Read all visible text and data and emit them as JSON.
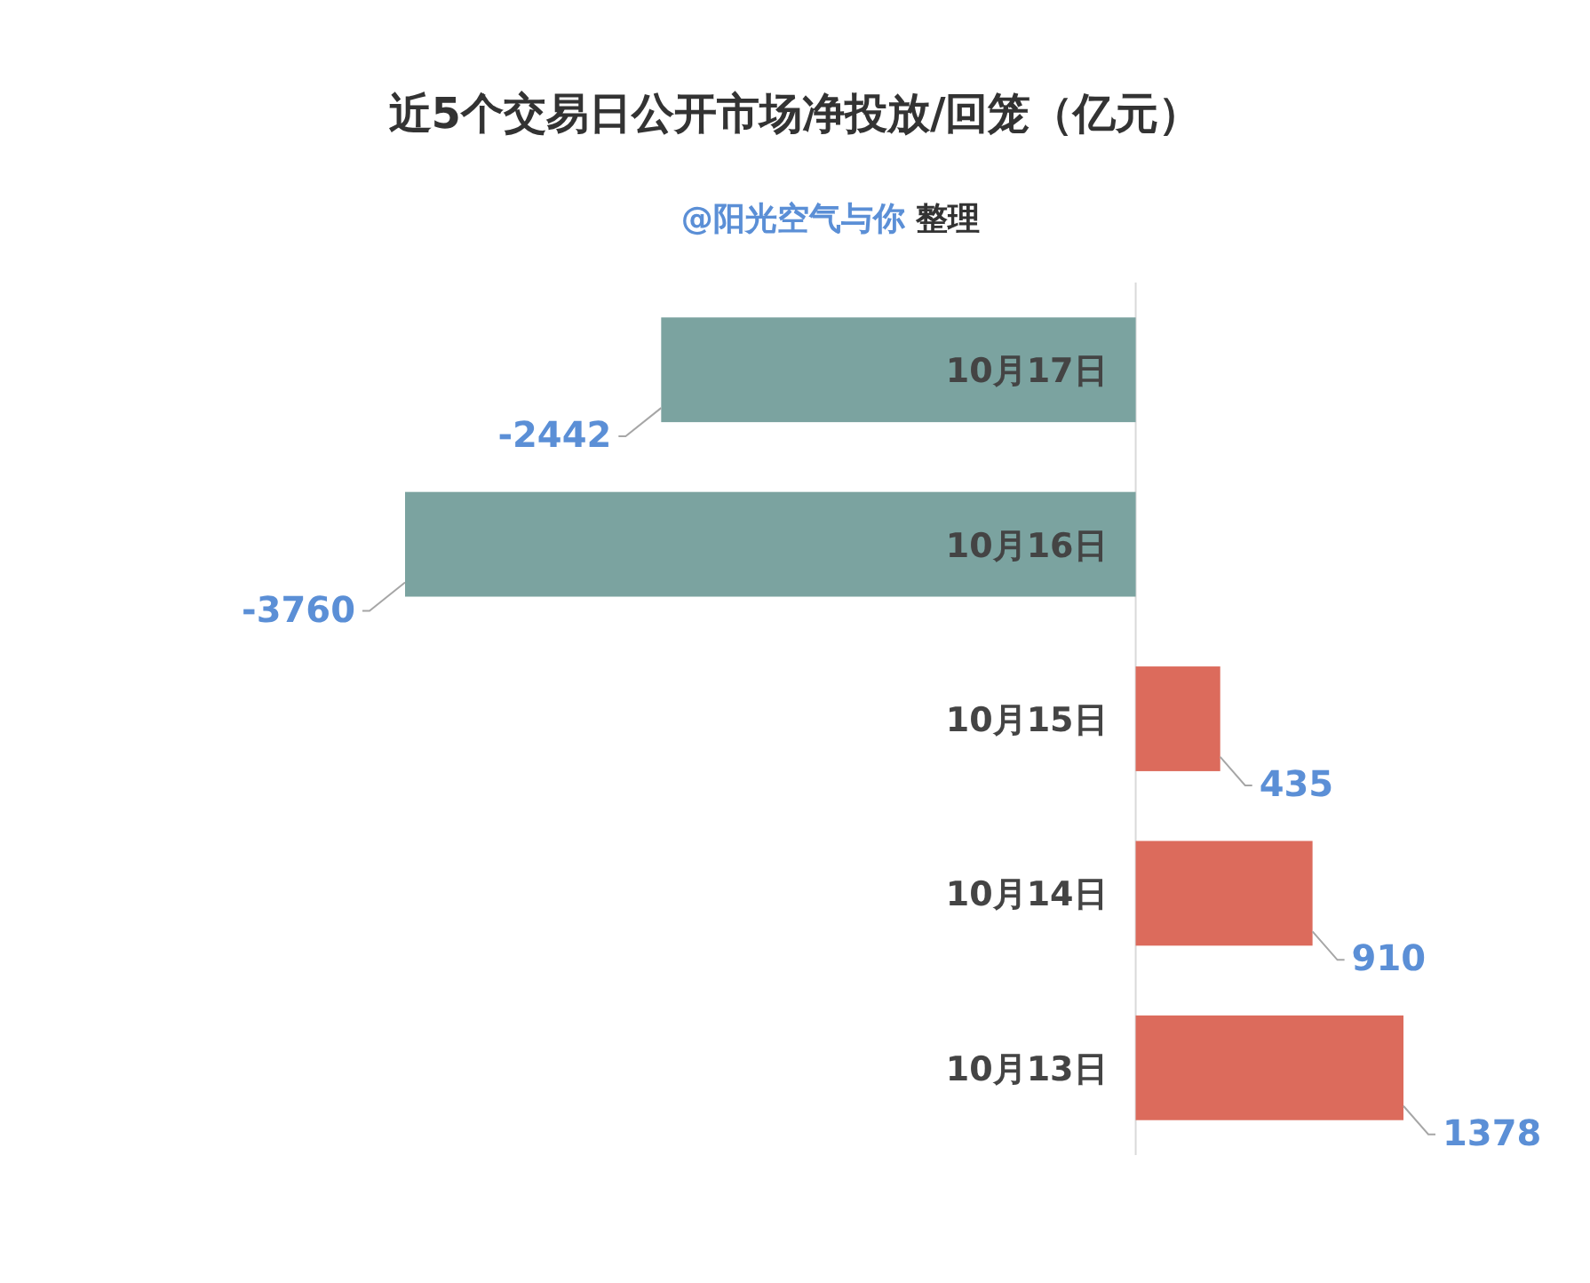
{
  "chart_data": {
    "type": "bar",
    "orientation": "horizontal",
    "title": "近5个交易日公开市场净投放/回笼（亿元）",
    "subtitle": "@阳光空气与你 整理",
    "categories": [
      "10月17日",
      "10月16日",
      "10月15日",
      "10月14日",
      "10月13日"
    ],
    "values": [
      -2442,
      -3760,
      435,
      910,
      1378
    ],
    "colors": [
      "#7ba3a0",
      "#7ba3a0",
      "#dc6b5c",
      "#dc6b5c",
      "#dc6b5c"
    ],
    "data_labels": true
  }
}
